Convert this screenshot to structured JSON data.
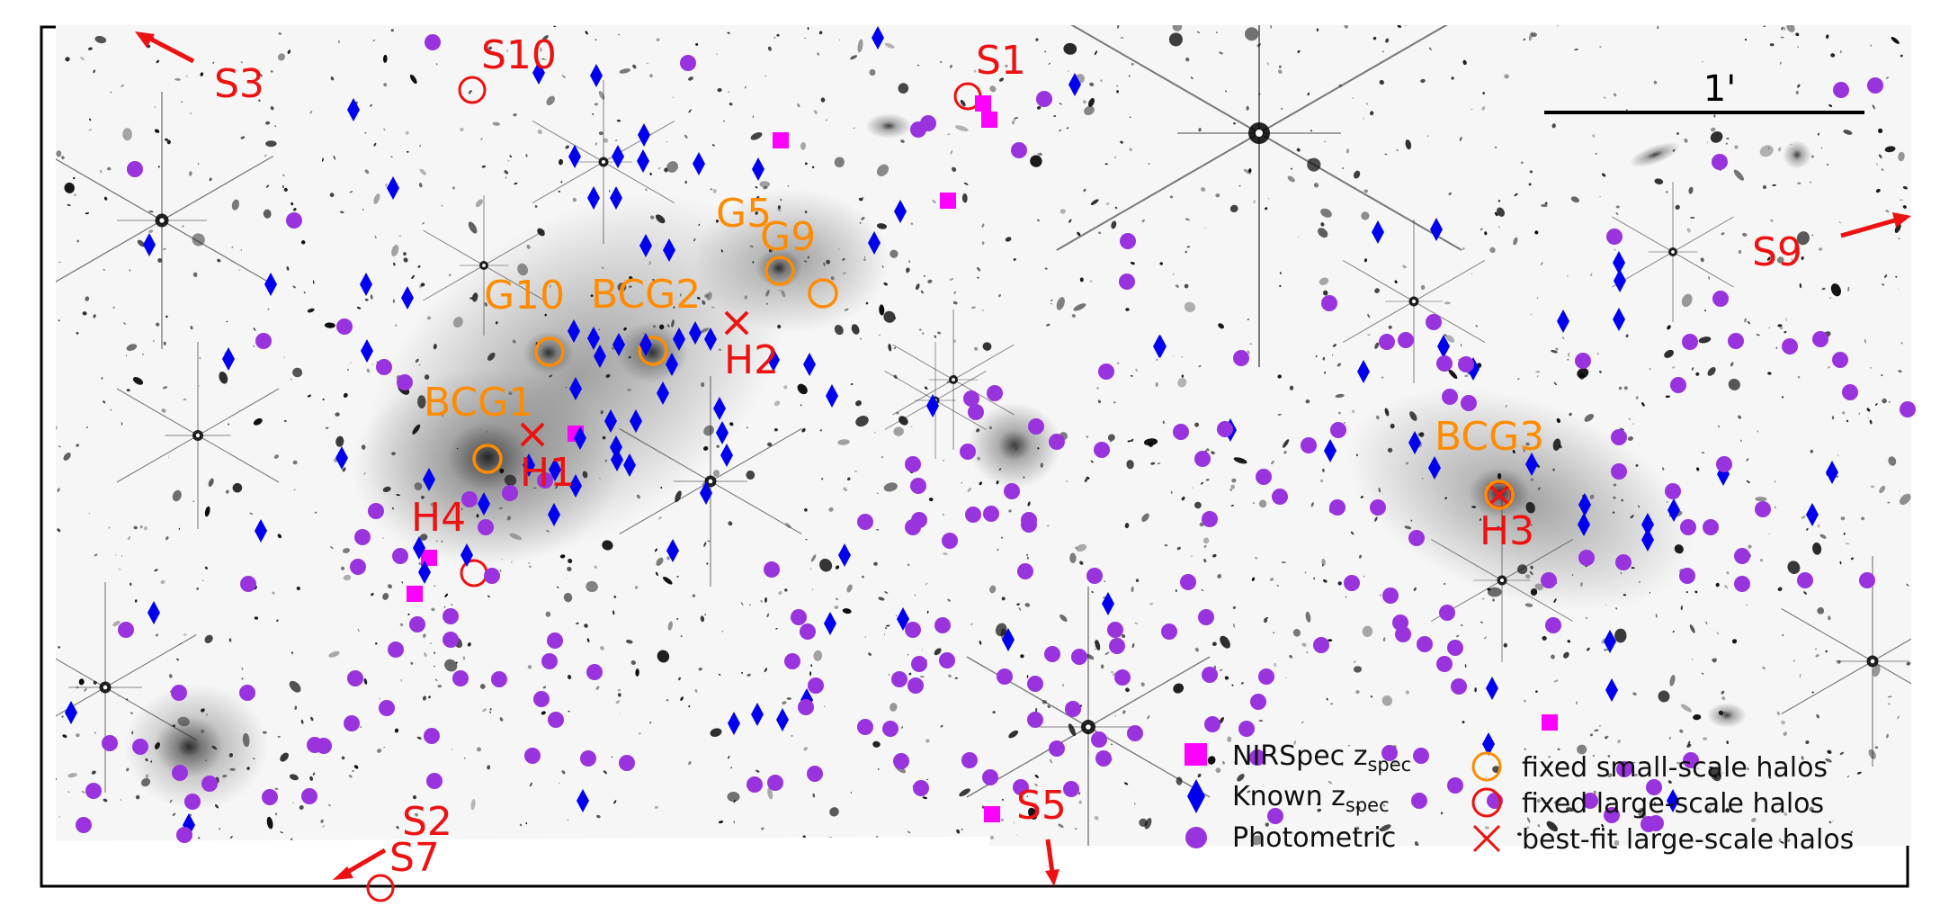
{
  "colors": {
    "red": "#ee1111",
    "orange": "#ff8c00",
    "magenta": "#ff00ff",
    "blue": "#0000ee",
    "purple": "#9933dd"
  },
  "scale_bar": {
    "label": "1'"
  },
  "labels": {
    "S3": "S3",
    "S10": "S10",
    "S1": "S1",
    "S9": "S9",
    "S2": "S2",
    "S7": "S7",
    "S5": "S5",
    "G5": "G5",
    "G9": "G9",
    "G10": "G10",
    "BCG1": "BCG1",
    "BCG2": "BCG2",
    "BCG3": "BCG3",
    "H1": "H1",
    "H2": "H2",
    "H3": "H3",
    "H4": "H4"
  },
  "legend": {
    "left": [
      {
        "main": "NIRSpec z",
        "sub": "spec",
        "icon": "magenta-square-icon"
      },
      {
        "main": "Known z",
        "sub": "spec",
        "icon": "blue-diamond-icon"
      },
      {
        "main": "Photometric",
        "sub": "",
        "icon": "purple-circle-icon"
      }
    ],
    "right": [
      {
        "main": "fixed small-scale halos",
        "icon": "orange-open-circle-icon"
      },
      {
        "main": "fixed large-scale halos",
        "icon": "red-open-circle-icon"
      },
      {
        "main": "best-fit large-scale halos",
        "icon": "red-cross-icon"
      }
    ]
  }
}
